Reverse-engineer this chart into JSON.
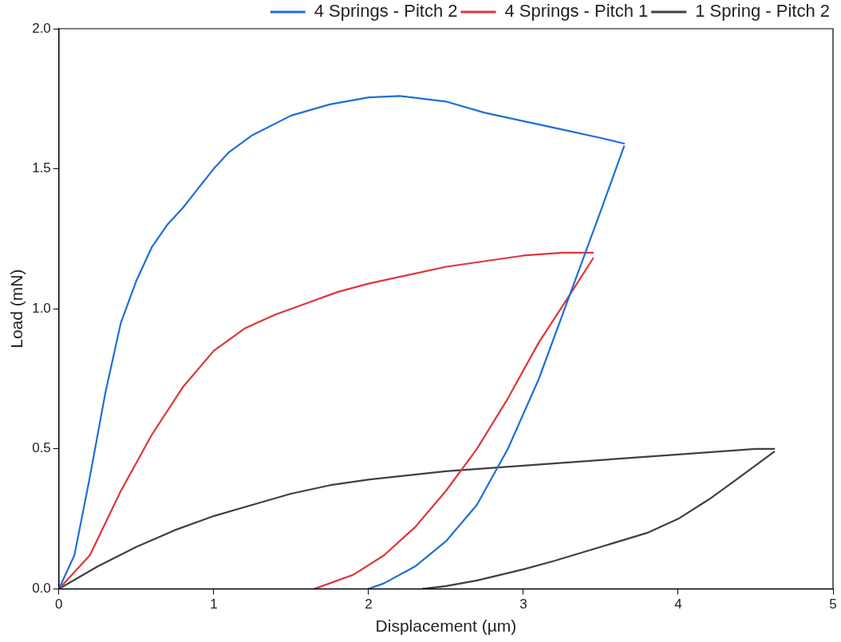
{
  "chart_data": {
    "type": "line",
    "xlabel": "Displacement (µm)",
    "ylabel": "Load (mN)",
    "xlim": [
      0,
      5
    ],
    "ylim": [
      0,
      2
    ],
    "xticks": [
      0,
      1,
      2,
      3,
      4,
      5
    ],
    "yticks": [
      {
        "value": 0,
        "label": "0.0"
      },
      {
        "value": 0.5,
        "label": "0.5"
      },
      {
        "value": 1,
        "label": "1.0"
      },
      {
        "value": 1.5,
        "label": "1.5"
      },
      {
        "value": 2,
        "label": "2.0"
      }
    ],
    "grid": false,
    "legend": "top right",
    "marker": "none",
    "line_style": "solid",
    "series": [
      {
        "name": "4 Springs - Pitch 2",
        "color": "#1f6fd6",
        "x": [
          0,
          0.1,
          0.2,
          0.3,
          0.4,
          0.5,
          0.6,
          0.7,
          0.8,
          0.9,
          1.0,
          1.1,
          1.25,
          1.5,
          1.75,
          2.0,
          2.2,
          2.5,
          2.75,
          3.0,
          3.25,
          3.5,
          3.65
        ],
        "values": [
          0,
          0.12,
          0.4,
          0.7,
          0.95,
          1.1,
          1.22,
          1.3,
          1.36,
          1.43,
          1.5,
          1.56,
          1.62,
          1.69,
          1.73,
          1.755,
          1.76,
          1.74,
          1.7,
          1.67,
          1.64,
          1.61,
          1.59
        ]
      },
      {
        "color": "#1f6fd6",
        "x": [
          3.65,
          3.5,
          3.3,
          3.1,
          2.9,
          2.7,
          2.5,
          2.3,
          2.1,
          2.0
        ],
        "values": [
          1.58,
          1.35,
          1.05,
          0.75,
          0.5,
          0.3,
          0.17,
          0.08,
          0.02,
          0
        ]
      },
      {
        "name": "4 Springs - Pitch 1",
        "color": "#e0353a",
        "x": [
          0,
          0.2,
          0.4,
          0.6,
          0.8,
          1.0,
          1.2,
          1.4,
          1.6,
          1.8,
          2.0,
          2.25,
          2.5,
          2.75,
          3.0,
          3.25,
          3.45
        ],
        "values": [
          0,
          0.12,
          0.35,
          0.55,
          0.72,
          0.85,
          0.93,
          0.98,
          1.02,
          1.06,
          1.09,
          1.12,
          1.15,
          1.17,
          1.19,
          1.2,
          1.2
        ]
      },
      {
        "color": "#e0353a",
        "x": [
          3.45,
          3.3,
          3.1,
          2.9,
          2.7,
          2.5,
          2.3,
          2.1,
          1.9,
          1.7,
          1.65
        ],
        "values": [
          1.18,
          1.05,
          0.88,
          0.68,
          0.5,
          0.35,
          0.22,
          0.12,
          0.05,
          0.01,
          0
        ]
      },
      {
        "name": "1 Spring - Pitch 2",
        "color": "#404040",
        "x": [
          0,
          0.25,
          0.5,
          0.75,
          1.0,
          1.25,
          1.5,
          1.75,
          2.0,
          2.5,
          3.0,
          3.5,
          4.0,
          4.5,
          4.62
        ],
        "values": [
          0,
          0.08,
          0.15,
          0.21,
          0.26,
          0.3,
          0.34,
          0.37,
          0.39,
          0.42,
          0.44,
          0.46,
          0.48,
          0.5,
          0.5
        ]
      },
      {
        "color": "#404040",
        "x": [
          4.62,
          4.4,
          4.2,
          4.0,
          3.8,
          3.5,
          3.2,
          3.0,
          2.7,
          2.5,
          2.35
        ],
        "values": [
          0.49,
          0.4,
          0.32,
          0.25,
          0.2,
          0.15,
          0.1,
          0.07,
          0.03,
          0.01,
          0
        ]
      }
    ]
  }
}
